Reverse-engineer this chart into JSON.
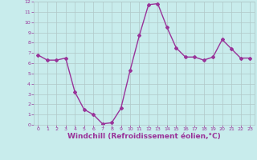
{
  "x": [
    0,
    1,
    2,
    3,
    4,
    5,
    6,
    7,
    8,
    9,
    10,
    11,
    12,
    13,
    14,
    15,
    16,
    17,
    18,
    19,
    20,
    21,
    22,
    23
  ],
  "y": [
    6.8,
    6.3,
    6.3,
    6.5,
    3.2,
    1.5,
    1.0,
    0.1,
    0.2,
    1.6,
    5.3,
    8.7,
    11.7,
    11.8,
    9.5,
    7.5,
    6.6,
    6.6,
    6.3,
    6.6,
    8.3,
    7.4,
    6.5,
    6.5
  ],
  "line_color": "#993399",
  "marker": "D",
  "marker_size": 2,
  "line_width": 1.0,
  "xlabel": "Windchill (Refroidissement éolien,°C)",
  "xlabel_fontsize": 6.5,
  "bg_color": "#c8ecec",
  "grid_color": "#b0c8c8",
  "tick_color": "#993399",
  "label_color": "#993399",
  "ylim": [
    0,
    12
  ],
  "xlim": [
    -0.5,
    23.5
  ],
  "yticks": [
    0,
    1,
    2,
    3,
    4,
    5,
    6,
    7,
    8,
    9,
    10,
    11,
    12
  ],
  "xticks": [
    0,
    1,
    2,
    3,
    4,
    5,
    6,
    7,
    8,
    9,
    10,
    11,
    12,
    13,
    14,
    15,
    16,
    17,
    18,
    19,
    20,
    21,
    22,
    23
  ]
}
